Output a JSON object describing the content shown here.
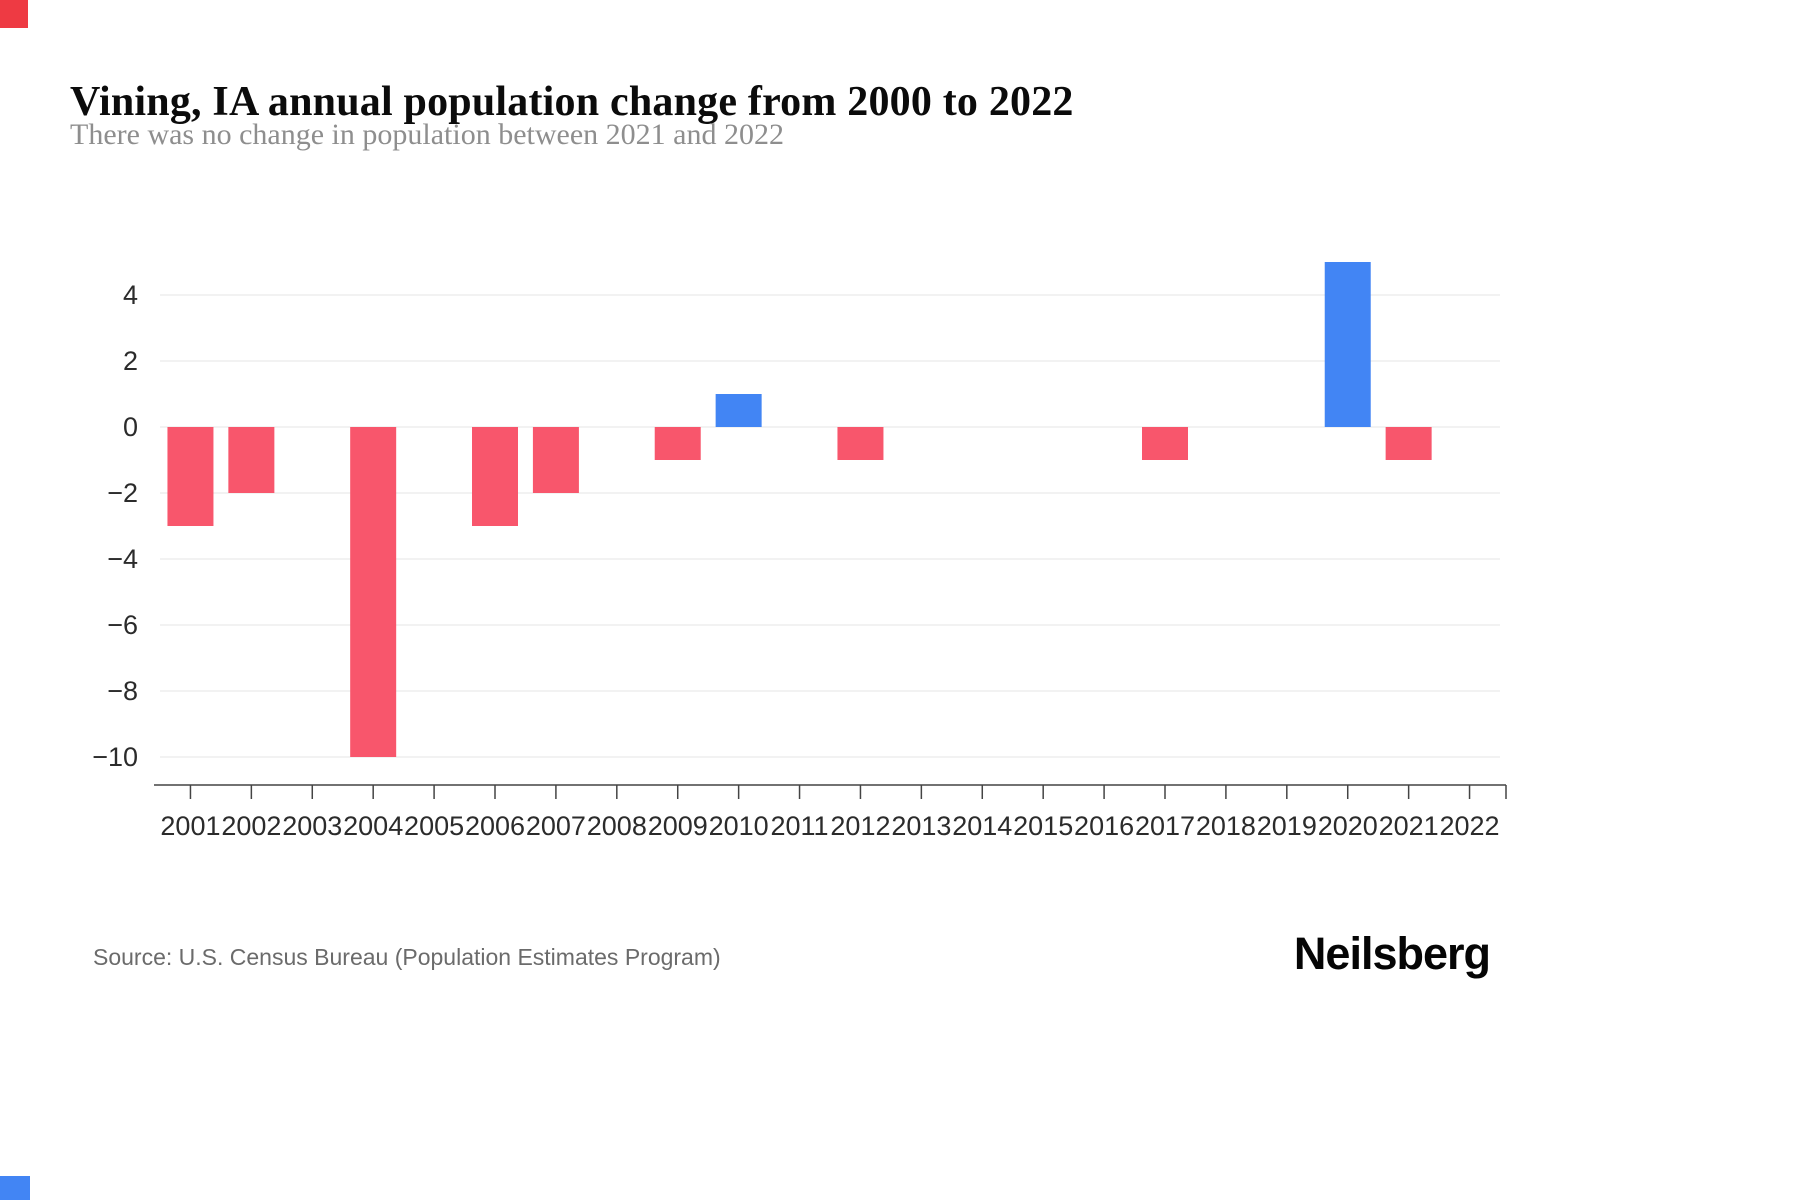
{
  "page": {
    "title": "Vining, IA annual population change from 2000 to 2022",
    "subtitle": "There was no change in population between 2021 and 2022",
    "source": "Source: U.S. Census Bureau (Population Estimates Program)",
    "brand": "Neilsberg"
  },
  "colors": {
    "negative_bar": "#f8566c",
    "positive_bar": "#4285f4",
    "grid": "#ededed",
    "axis": "#444444",
    "axis_label": "#2b2b2b",
    "corner_top": "#ee3a43",
    "corner_bottom": "#4285f4"
  },
  "chart_data": {
    "type": "bar",
    "title": "Vining, IA annual population change from 2000 to 2022",
    "subtitle": "There was no change in population between 2021 and 2022",
    "xlabel": "",
    "ylabel": "",
    "categories": [
      "2001",
      "2002",
      "2003",
      "2004",
      "2005",
      "2006",
      "2007",
      "2008",
      "2009",
      "2010",
      "2011",
      "2012",
      "2013",
      "2014",
      "2015",
      "2016",
      "2017",
      "2018",
      "2019",
      "2020",
      "2021",
      "2022"
    ],
    "values": [
      -3,
      -2,
      0,
      -10,
      0,
      -3,
      -2,
      0,
      -1,
      1,
      0,
      -1,
      0,
      0,
      0,
      0,
      -1,
      0,
      0,
      5,
      -1,
      0
    ],
    "yticks": [
      4,
      2,
      0,
      -2,
      -4,
      -6,
      -8,
      -10
    ],
    "ylim": [
      -11,
      5.5
    ],
    "grid": true,
    "legend": false,
    "bar_color_positive": "#4285f4",
    "bar_color_negative": "#f8566c"
  }
}
